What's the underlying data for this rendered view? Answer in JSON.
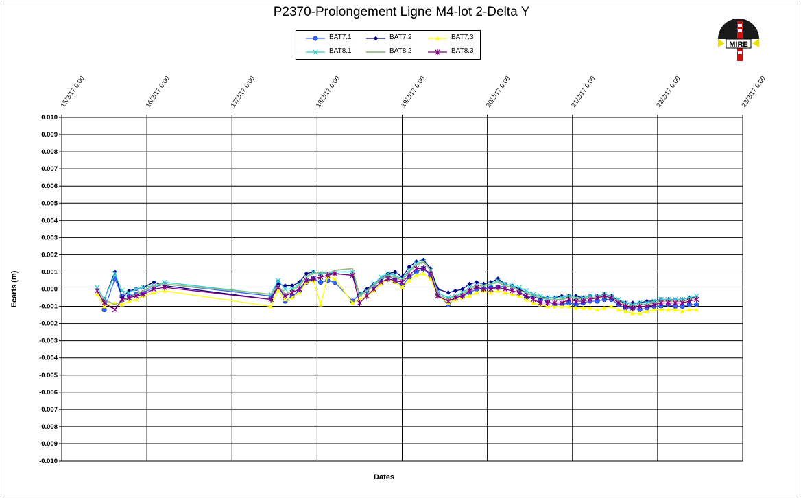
{
  "chart_data": {
    "type": "line",
    "title": "P2370-Prolongement  Ligne  M4-lot  2-Delta  Y",
    "xlabel": "Dates",
    "ylabel": "Ecarts (m)",
    "xlim": [
      "15/2/17 0:00",
      "23/2/17 0:00"
    ],
    "ylim": [
      -0.01,
      0.01
    ],
    "x_ticks": [
      "15/2/17 0:00",
      "16/2/17 0:00",
      "17/2/17 0:00",
      "18/2/17 0:00",
      "19/2/17 0:00",
      "20/2/17 0:00",
      "21/2/17 0:00",
      "22/2/17 0:00",
      "23/2/17 0:00"
    ],
    "y_ticks": [
      "0.010",
      "0.009",
      "0.008",
      "0.007",
      "0.006",
      "0.005",
      "0.004",
      "0.003",
      "0.002",
      "0.001",
      "0.000",
      "-0.001",
      "-0.002",
      "-0.003",
      "-0.004",
      "-0.005",
      "-0.006",
      "-0.007",
      "-0.008",
      "-0.009",
      "-0.010"
    ],
    "grid": true,
    "legend_position": "top-center",
    "x": [
      "15/2/17 10:00",
      "15/2/17 12:00",
      "15/2/17 15:00",
      "15/2/17 17:00",
      "15/2/17 19:00",
      "15/2/17 21:00",
      "15/2/17 23:00",
      "16/2/17 2:00",
      "16/2/17 5:00",
      "17/2/17 11:00",
      "17/2/17 13:00",
      "17/2/17 15:00",
      "17/2/17 17:00",
      "17/2/17 19:00",
      "17/2/17 21:00",
      "17/2/17 23:00",
      "18/2/17 1:00",
      "18/2/17 3:00",
      "18/2/17 5:00",
      "18/2/17 10:00",
      "18/2/17 12:00",
      "18/2/17 14:00",
      "18/2/17 16:00",
      "18/2/17 18:00",
      "18/2/17 20:00",
      "18/2/17 22:00",
      "19/2/17 0:00",
      "19/2/17 2:00",
      "19/2/17 4:00",
      "19/2/17 6:00",
      "19/2/17 8:00",
      "19/2/17 10:00",
      "19/2/17 13:00",
      "19/2/17 15:00",
      "19/2/17 17:00",
      "19/2/17 19:00",
      "19/2/17 21:00",
      "19/2/17 23:00",
      "20/2/17 1:00",
      "20/2/17 3:00",
      "20/2/17 5:00",
      "20/2/17 7:00",
      "20/2/17 9:00",
      "20/2/17 11:00",
      "20/2/17 13:00",
      "20/2/17 15:00",
      "20/2/17 17:00",
      "20/2/17 19:00",
      "20/2/17 21:00",
      "20/2/17 23:00",
      "21/2/17 1:00",
      "21/2/17 3:00",
      "21/2/17 5:00",
      "21/2/17 7:00",
      "21/2/17 9:00",
      "21/2/17 11:00",
      "21/2/17 13:00",
      "21/2/17 15:00",
      "21/2/17 17:00",
      "21/2/17 19:00",
      "21/2/17 21:00",
      "21/2/17 23:00",
      "22/2/17 1:00",
      "22/2/17 3:00",
      "22/2/17 5:00",
      "22/2/17 7:00",
      "22/2/17 9:00",
      "22/2/17 11:00"
    ],
    "series": [
      {
        "name": "BAT7.1",
        "color": "#3366FF",
        "marker": "circle",
        "values": [
          null,
          -0.0012,
          0.0006,
          -0.0004,
          -0.0004,
          -0.0003,
          -0.0002,
          0.0001,
          0.0003,
          -0.0004,
          0.0004,
          -0.0007,
          -0.0004,
          -0.0001,
          0.0004,
          0.0006,
          0.0004,
          0.0005,
          0.0004,
          -0.0007,
          -0.0003,
          -0.0001,
          0.0002,
          0.0005,
          0.0008,
          0.0005,
          0.0002,
          0.0007,
          0.001,
          0.0012,
          0.0008,
          -0.0003,
          -0.0009,
          -0.0005,
          -0.0004,
          -0.0002,
          0.0,
          0.0,
          0.0001,
          0.0001,
          0.0002,
          0.0001,
          -0.0001,
          -0.0005,
          -0.0004,
          -0.0006,
          -0.0007,
          -0.0009,
          -0.0009,
          -0.0008,
          -0.0009,
          -0.0008,
          -0.0007,
          -0.0007,
          -0.0006,
          -0.0006,
          -0.0009,
          -0.0011,
          -0.0011,
          -0.0012,
          -0.0011,
          -0.001,
          -0.001,
          -0.0009,
          -0.001,
          -0.001,
          -0.0009,
          -0.0009
        ]
      },
      {
        "name": "BAT7.2",
        "color": "#000080",
        "marker": "diamond",
        "values": [
          null,
          -0.0006,
          0.001,
          -0.0005,
          -0.0001,
          0.0,
          0.0001,
          0.0004,
          0.0002,
          -0.0006,
          0.0003,
          0.0002,
          0.0002,
          0.0004,
          0.0009,
          0.001,
          0.0009,
          0.0009,
          0.0009,
          0.0008,
          -0.0003,
          0.0,
          0.0003,
          0.0006,
          0.0009,
          0.001,
          0.0007,
          0.0013,
          0.0016,
          0.0017,
          0.0012,
          0.0,
          -0.0002,
          -0.0001,
          0.0,
          0.0003,
          0.0004,
          0.0003,
          0.0004,
          0.0006,
          0.0003,
          0.0002,
          0.0,
          -0.0002,
          -0.0004,
          -0.0005,
          -0.0005,
          -0.0005,
          -0.0004,
          -0.0004,
          -0.0004,
          -0.0005,
          -0.0004,
          -0.0004,
          -0.0003,
          -0.0004,
          -0.0007,
          -0.0008,
          -0.0008,
          -0.0008,
          -0.0007,
          -0.0007,
          -0.0006,
          -0.0006,
          -0.0006,
          -0.0006,
          -0.0005,
          -0.0005
        ]
      },
      {
        "name": "BAT7.3",
        "color": "#FFFF00",
        "marker": "triangle",
        "values": [
          -0.0003,
          -0.001,
          -0.0008,
          -0.0009,
          -0.0007,
          -0.0006,
          -0.0004,
          -0.0002,
          -0.0001,
          -0.001,
          -0.0001,
          -0.0006,
          -0.0005,
          -0.0002,
          0.0004,
          0.0005,
          -0.0009,
          0.0007,
          0.0006,
          -0.0008,
          -0.0006,
          -0.0004,
          -0.0001,
          0.0003,
          0.0006,
          0.0004,
          0.0001,
          0.0005,
          0.0008,
          0.0009,
          0.0006,
          -0.0004,
          -0.0008,
          -0.0006,
          -0.0005,
          -0.0004,
          -0.0002,
          -0.0001,
          -0.0002,
          -0.0001,
          -0.0002,
          -0.0003,
          -0.0004,
          -0.0006,
          -0.0008,
          -0.0009,
          -0.001,
          -0.001,
          -0.001,
          -0.001,
          -0.0011,
          -0.0011,
          -0.0011,
          -0.0012,
          -0.0011,
          -0.001,
          -0.0012,
          -0.0013,
          -0.0014,
          -0.0014,
          -0.0013,
          -0.0012,
          -0.0012,
          -0.0012,
          -0.0012,
          -0.0013,
          -0.0012,
          -0.0012
        ]
      },
      {
        "name": "BAT8.1",
        "color": "#33CCCC",
        "marker": "x",
        "values": [
          0.0001,
          -0.0006,
          0.0009,
          -0.0001,
          -0.0002,
          0.0,
          0.0001,
          0.0002,
          0.0004,
          -0.0003,
          0.0005,
          0.0,
          0.0,
          0.0003,
          0.0007,
          0.001,
          0.0009,
          0.0009,
          0.001,
          0.001,
          -0.0003,
          -0.0001,
          0.0003,
          0.0007,
          0.0009,
          0.0008,
          0.0006,
          0.0011,
          0.0015,
          0.0016,
          0.0011,
          -0.0002,
          -0.0005,
          -0.0004,
          -0.0002,
          0.0001,
          0.0002,
          0.0002,
          0.0003,
          0.0005,
          0.0003,
          0.0002,
          0.0001,
          -0.0001,
          -0.0003,
          -0.0004,
          -0.0005,
          -0.0005,
          -0.0005,
          -0.0004,
          -0.0005,
          -0.0005,
          -0.0004,
          -0.0004,
          -0.0003,
          -0.0004,
          -0.0006,
          -0.0008,
          -0.0009,
          -0.0008,
          -0.0008,
          -0.0007,
          -0.0006,
          -0.0006,
          -0.0006,
          -0.0006,
          -0.0005,
          -0.0004
        ]
      },
      {
        "name": "BAT8.2",
        "color": "#99BB88",
        "marker": "none",
        "values": [
          -0.0001,
          -0.0006,
          -0.0009,
          -0.0007,
          -0.0005,
          -0.0003,
          -0.0001,
          0.0002,
          0.0003,
          -0.0003,
          0.0002,
          -0.0003,
          -0.0001,
          0.0002,
          0.0007,
          0.0009,
          0.001,
          0.0009,
          0.0011,
          0.0012,
          -0.0004,
          -0.0001,
          0.0002,
          0.0006,
          0.0008,
          0.0007,
          0.0005,
          0.001,
          0.0014,
          0.0016,
          0.0011,
          -0.0003,
          -0.0006,
          -0.0004,
          -0.0003,
          0.0,
          0.0002,
          0.0002,
          0.0003,
          0.0004,
          0.0002,
          0.0001,
          -0.0001,
          -0.0002,
          -0.0004,
          -0.0005,
          -0.0006,
          -0.0006,
          -0.0006,
          -0.0005,
          -0.0005,
          -0.0006,
          -0.0005,
          -0.0005,
          -0.0005,
          -0.0005,
          -0.0007,
          -0.0009,
          -0.001,
          -0.0009,
          -0.0009,
          -0.0008,
          -0.0007,
          -0.0007,
          -0.0007,
          -0.0007,
          -0.0006,
          -0.0005
        ]
      },
      {
        "name": "BAT8.3",
        "color": "#800080",
        "marker": "star",
        "values": [
          -0.0001,
          -0.0008,
          -0.0012,
          -0.0006,
          -0.0005,
          -0.0004,
          -0.0003,
          0.0,
          0.0001,
          -0.0006,
          0.0001,
          -0.0004,
          -0.0002,
          0.0,
          0.0005,
          0.0006,
          0.0007,
          0.0008,
          0.0009,
          0.0008,
          -0.0008,
          -0.0004,
          0.0,
          0.0004,
          0.0006,
          0.0005,
          0.0004,
          0.0008,
          0.0012,
          0.0012,
          0.0009,
          -0.0004,
          -0.0007,
          -0.0005,
          -0.0004,
          -0.0001,
          0.0001,
          0.0,
          0.0,
          0.0001,
          0.0,
          -0.0001,
          -0.0002,
          -0.0004,
          -0.0006,
          -0.0008,
          -0.0008,
          -0.0008,
          -0.0008,
          -0.0006,
          -0.0007,
          -0.0007,
          -0.0006,
          -0.0005,
          -0.0004,
          -0.0005,
          -0.0008,
          -0.001,
          -0.0011,
          -0.001,
          -0.001,
          -0.0009,
          -0.0008,
          -0.0008,
          -0.0008,
          -0.0008,
          -0.0007,
          -0.0006
        ]
      }
    ]
  },
  "logo": {
    "text": "MIRE"
  }
}
